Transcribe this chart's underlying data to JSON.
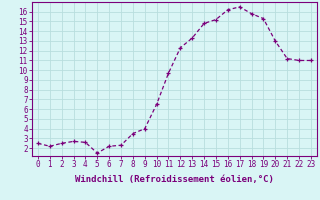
{
  "x": [
    0,
    1,
    2,
    3,
    4,
    5,
    6,
    7,
    8,
    9,
    10,
    11,
    12,
    13,
    14,
    15,
    16,
    17,
    18,
    19,
    20,
    21,
    22,
    23
  ],
  "y": [
    2.5,
    2.2,
    2.5,
    2.7,
    2.6,
    1.5,
    2.2,
    2.3,
    3.5,
    4.0,
    6.5,
    9.7,
    12.3,
    13.3,
    14.8,
    15.2,
    16.2,
    16.5,
    15.8,
    15.3,
    13.0,
    11.2,
    11.0,
    11.0
  ],
  "line_color": "#7b007b",
  "marker": "+",
  "marker_size": 3,
  "bg_color": "#d9f5f5",
  "grid_color": "#b8dede",
  "xlabel": "Windchill (Refroidissement éolien,°C)",
  "xlabel_color": "#7b007b",
  "tick_color": "#7b007b",
  "ylim": [
    1.2,
    17.0
  ],
  "xlim": [
    -0.5,
    23.5
  ],
  "yticks": [
    2,
    3,
    4,
    5,
    6,
    7,
    8,
    9,
    10,
    11,
    12,
    13,
    14,
    15,
    16
  ],
  "xticks": [
    0,
    1,
    2,
    3,
    4,
    5,
    6,
    7,
    8,
    9,
    10,
    11,
    12,
    13,
    14,
    15,
    16,
    17,
    18,
    19,
    20,
    21,
    22,
    23
  ],
  "spine_color": "#7b007b",
  "tick_fontsize": 5.5,
  "xlabel_fontsize": 6.5,
  "linewidth": 0.9
}
